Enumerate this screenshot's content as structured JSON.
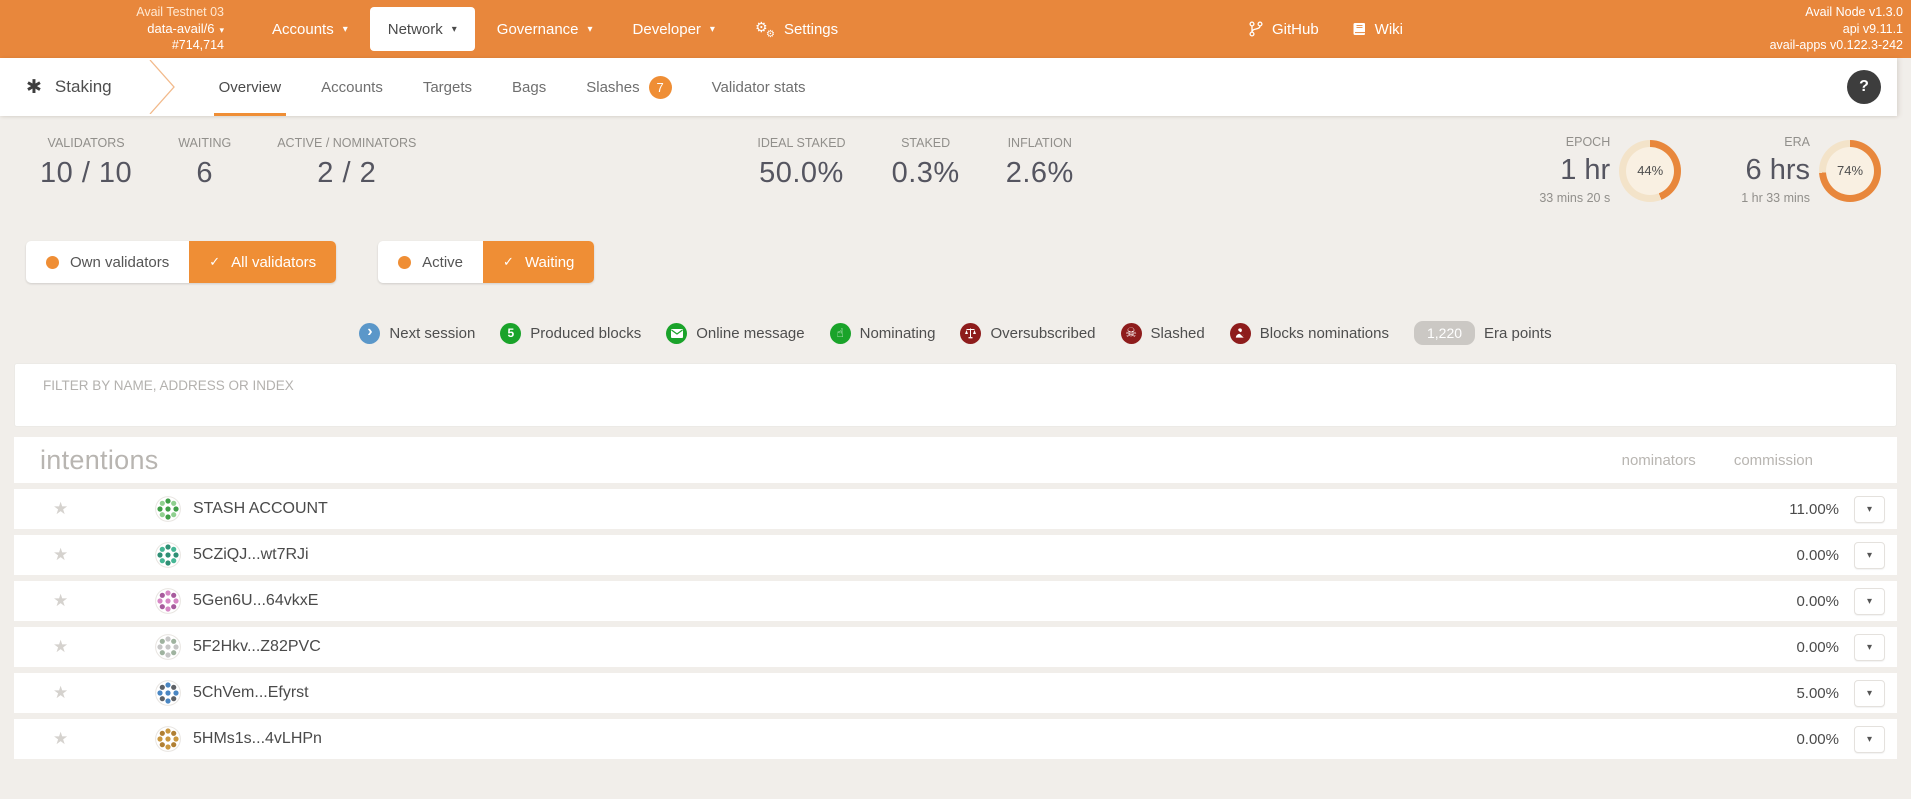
{
  "colors": {
    "orange_bar": "#e8873c",
    "accent": "#ef8e35",
    "page_bg": "#f1eeea",
    "donut_arc": "#e8873c",
    "donut_track": "#f3e3c9",
    "donut_face": "#f9f0e2",
    "legend_blue": "#5b97c9",
    "legend_green": "#1aa32a",
    "legend_red": "#8e1c1c",
    "era_points_badge": "#cbc8c4"
  },
  "icons": {
    "caret": "▾",
    "check": "✓",
    "star": "★",
    "staking": "✱",
    "gear": "⚙"
  },
  "topbar": {
    "network_name": "Avail Testnet 03",
    "endpoint": "data-avail/6",
    "block_number": "#714,714",
    "menus": [
      {
        "label": "Accounts"
      },
      {
        "label": "Network",
        "active": true
      },
      {
        "label": "Governance"
      },
      {
        "label": "Developer"
      }
    ],
    "settings_label": "Settings",
    "github_label": "GitHub",
    "wiki_label": "Wiki",
    "version_lines": [
      "Avail Node v1.3.0",
      "api v9.11.1",
      "avail-apps v0.122.3-242"
    ]
  },
  "tabbar": {
    "section": "Staking",
    "tabs": [
      {
        "label": "Overview",
        "active": true
      },
      {
        "label": "Accounts"
      },
      {
        "label": "Targets"
      },
      {
        "label": "Bags"
      },
      {
        "label": "Slashes",
        "badge": "7"
      },
      {
        "label": "Validator stats"
      }
    ],
    "help": "?"
  },
  "summary": {
    "stats": [
      {
        "label": "VALIDATORS",
        "value": "10 / 10"
      },
      {
        "label": "WAITING",
        "value": "6"
      },
      {
        "label": "ACTIVE / NOMINATORS",
        "value": "2 / 2"
      },
      {
        "label": "IDEAL STAKED",
        "value": "50.0%"
      },
      {
        "label": "STAKED",
        "value": "0.3%"
      },
      {
        "label": "INFLATION",
        "value": "2.6%"
      }
    ],
    "epoch": {
      "label": "EPOCH",
      "value": "1 hr",
      "sub": "33 mins 20 s",
      "percent": 44,
      "percent_label": "44%"
    },
    "era": {
      "label": "ERA",
      "value": "6 hrs",
      "sub": "1 hr 33 mins",
      "percent": 74,
      "percent_label": "74%"
    }
  },
  "toggles": {
    "validators": [
      {
        "label": "Own validators",
        "selected": false
      },
      {
        "label": "All validators",
        "selected": true
      }
    ],
    "status": [
      {
        "label": "Active",
        "selected": false
      },
      {
        "label": "Waiting",
        "selected": true
      }
    ]
  },
  "legend": {
    "items": [
      {
        "name": "next-session",
        "label": "Next session",
        "glyph": "›",
        "color": "#5b97c9"
      },
      {
        "name": "produced-blocks",
        "label": "Produced blocks",
        "glyph": "5",
        "color": "#1aa32a"
      },
      {
        "name": "online-message",
        "label": "Online message",
        "color": "#1aa32a"
      },
      {
        "name": "nominating",
        "label": "Nominating",
        "glyph": "☝",
        "color": "#1aa32a"
      },
      {
        "name": "oversubscribed",
        "label": "Oversubscribed",
        "color": "#8e1c1c"
      },
      {
        "name": "slashed",
        "label": "Slashed",
        "glyph": "☠",
        "color": "#8e1c1c"
      },
      {
        "name": "blocks-nominations",
        "label": "Blocks nominations",
        "color": "#8e1c1c"
      }
    ],
    "era_points_value": "1,220",
    "era_points_label": "Era points"
  },
  "filter": {
    "placeholder": "FILTER BY NAME, ADDRESS OR INDEX"
  },
  "table": {
    "title": "intentions",
    "columns": [
      "nominators",
      "commission"
    ],
    "rows": [
      {
        "name": "STASH ACCOUNT",
        "commission": "11.00%",
        "identicon": [
          "#3f9e47",
          "#8fd08f"
        ]
      },
      {
        "name": "5CZiQJ...wt7RJi",
        "commission": "0.00%",
        "identicon": [
          "#2e8f74",
          "#45b694"
        ]
      },
      {
        "name": "5Gen6U...64vkxE",
        "commission": "0.00%",
        "identicon": [
          "#d687c4",
          "#a75b9d"
        ]
      },
      {
        "name": "5F2Hkv...Z82PVC",
        "commission": "0.00%",
        "identicon": [
          "#c6c6c6",
          "#9fb39f"
        ]
      },
      {
        "name": "5ChVem...Efyrst",
        "commission": "5.00%",
        "identicon": [
          "#4a86c2",
          "#5d6166"
        ]
      },
      {
        "name": "5HMs1s...4vLHPn",
        "commission": "0.00%",
        "identicon": [
          "#c9973f",
          "#b07f33"
        ]
      }
    ]
  }
}
